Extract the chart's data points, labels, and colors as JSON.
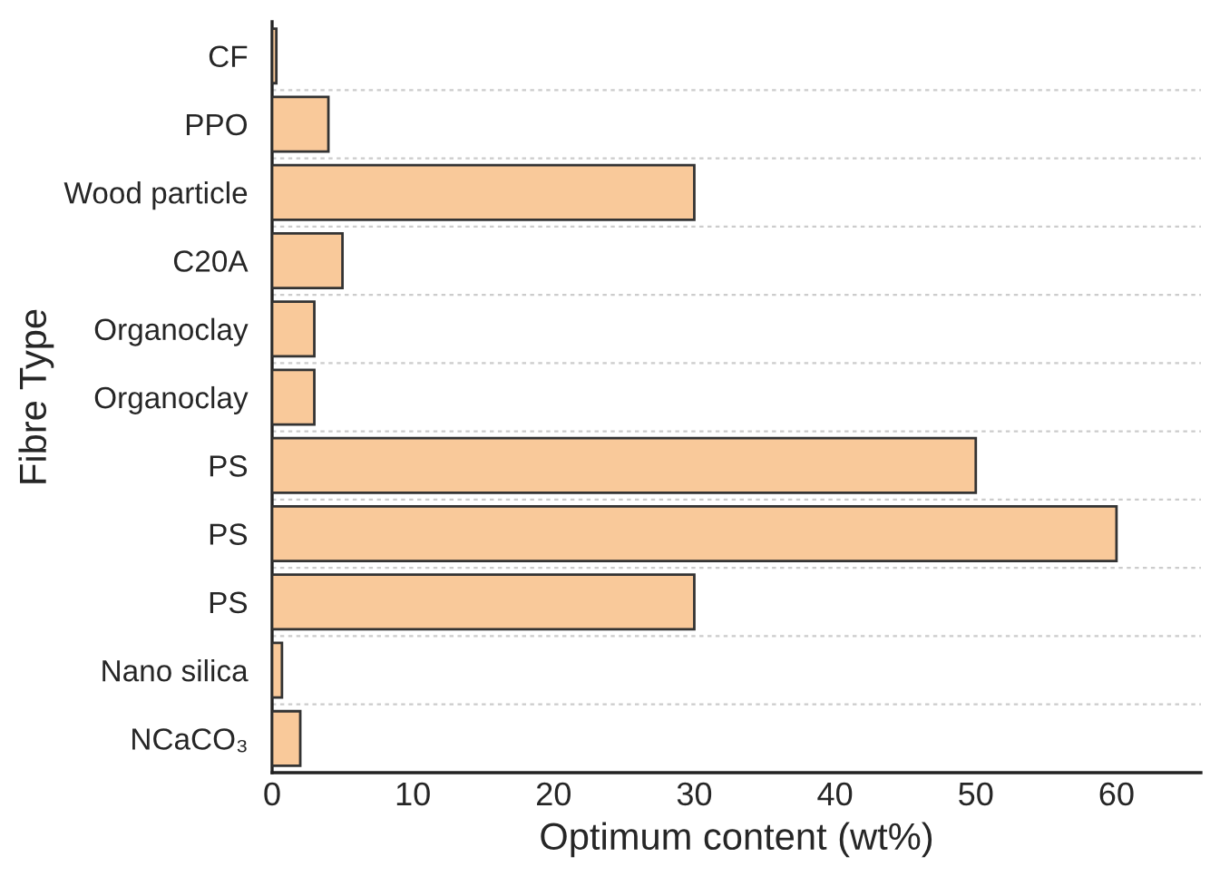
{
  "chart_data": {
    "type": "bar",
    "orientation": "horizontal",
    "xlabel": "Optimum content (wt%)",
    "ylabel": "Fibre Type",
    "categories": [
      "CF",
      "PPO",
      "Wood particle",
      "C20A",
      "Organoclay",
      "Organoclay",
      "PS",
      "PS",
      "PS",
      "Nano silica",
      "NCaCO₃"
    ],
    "values": [
      0.3,
      4,
      30,
      5,
      3,
      3,
      50,
      60,
      30,
      0.7,
      2
    ],
    "color": "#f9c99a",
    "xlim": [
      0,
      66
    ],
    "xticks": [
      0,
      10,
      20,
      30,
      40,
      50,
      60
    ],
    "grid": "y"
  }
}
